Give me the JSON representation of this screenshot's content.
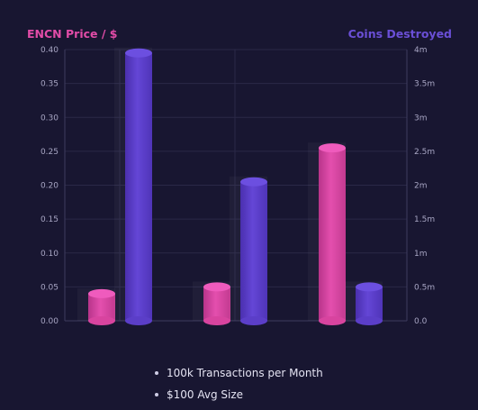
{
  "chart_data": {
    "type": "bar",
    "categories": [
      "",
      "",
      ""
    ],
    "series": [
      {
        "axis": "left",
        "color": "#d8449f",
        "values": [
          0.04,
          0.05,
          0.255
        ]
      },
      {
        "axis": "right",
        "color": "#5b3ec8",
        "values": [
          3.95,
          2.05,
          0.5
        ]
      }
    ],
    "y_left": {
      "label": "ENCN Price / $",
      "color": "#e24ca8",
      "ylim": [
        0,
        0.4
      ],
      "ticks": [
        "0.00",
        "0.05",
        "0.10",
        "0.15",
        "0.20",
        "0.25",
        "0.30",
        "0.35",
        "0.40"
      ]
    },
    "y_right": {
      "label": "Coins Destroyed",
      "color": "#6a4fd6",
      "ylim": [
        0,
        4
      ],
      "ticks": [
        "0.0",
        "0.5m",
        "1m",
        "1.5m",
        "2m",
        "2.5m",
        "3m",
        "3.5m",
        "4m"
      ]
    },
    "grid": true
  },
  "notes": [
    {
      "text": "100k Transactions per Month"
    },
    {
      "text": "$100 Avg Size"
    }
  ]
}
